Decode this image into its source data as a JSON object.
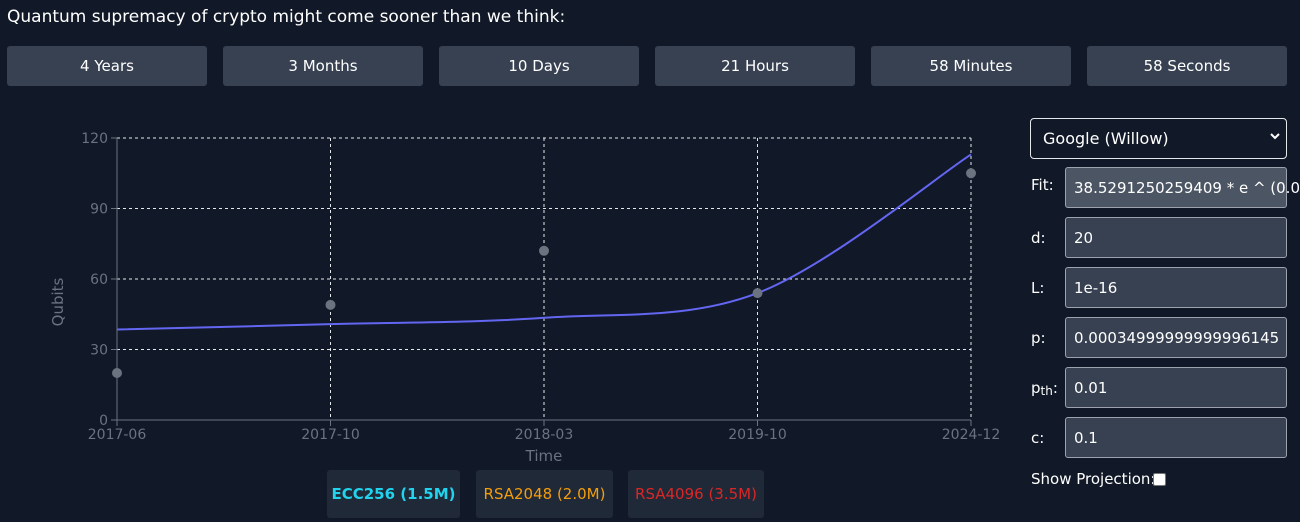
{
  "header": {
    "title": "Quantum supremacy of crypto might come sooner than we think:"
  },
  "countdown": [
    {
      "label": "4 Years"
    },
    {
      "label": "3 Months"
    },
    {
      "label": "10 Days"
    },
    {
      "label": "21 Hours"
    },
    {
      "label": "58 Minutes"
    },
    {
      "label": "58 Seconds"
    }
  ],
  "chart_data": {
    "type": "scatter",
    "title": "",
    "xlabel": "Time",
    "ylabel": "Qubits",
    "ylim": [
      0,
      120
    ],
    "y_ticks": [
      "0",
      "30",
      "60",
      "90",
      "120"
    ],
    "x_ticks": [
      "2017-06",
      "2017-10",
      "2018-03",
      "2019-10",
      "2024-12"
    ],
    "grid": true,
    "points": [
      {
        "x": "2017-06",
        "y": 20
      },
      {
        "x": "2017-10",
        "y": 49
      },
      {
        "x": "2018-03",
        "y": 72
      },
      {
        "x": "2019-10",
        "y": 54
      },
      {
        "x": "2024-12",
        "y": 105
      }
    ],
    "fit_curve": {
      "x": [
        "2017-06",
        "2017-10",
        "2018-03",
        "2019-10",
        "2024-12"
      ],
      "y": [
        38.5,
        40.8,
        43.5,
        54,
        113
      ]
    },
    "colors": {
      "points": "#6b7280",
      "fit": "#6366f1",
      "grid": "#e5e7eb",
      "axis": "#6b7280"
    }
  },
  "legend": [
    {
      "label": "ECC256 (1.5M)",
      "color": "#22d3ee"
    },
    {
      "label": "RSA2048 (2.0M)",
      "color": "#f59e0b"
    },
    {
      "label": "RSA4096 (3.5M)",
      "color": "#dc2626"
    }
  ],
  "controls": {
    "provider": "Google (Willow)",
    "fit": {
      "label": "Fit:",
      "value": "38.5291250259409 * e ^ (0.0"
    },
    "d": {
      "label": "d:",
      "value": "20"
    },
    "L": {
      "label": "L:",
      "value": "1e-16"
    },
    "p": {
      "label": "p:",
      "value": "0.00034999999999996145"
    },
    "pth": {
      "label": "p",
      "sub": "th",
      "suffix": ":",
      "value": "0.01"
    },
    "c": {
      "label": "c:",
      "value": "0.1"
    },
    "show_projection": "Show Projection:"
  }
}
